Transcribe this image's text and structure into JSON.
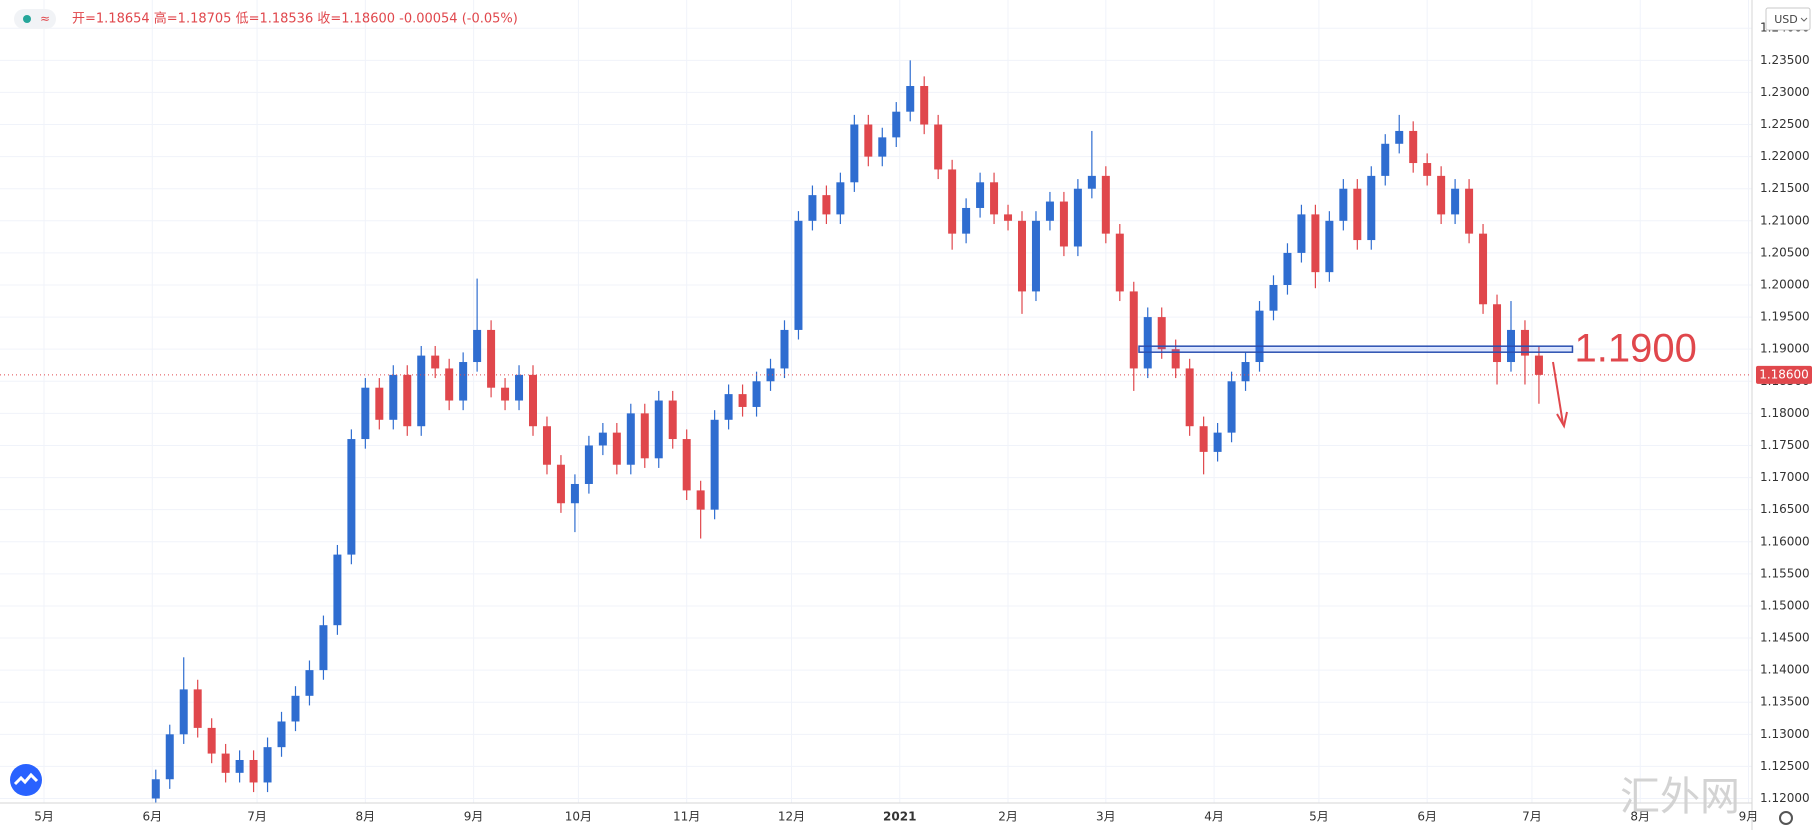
{
  "chart_data": {
    "type": "candlestick",
    "title": "开=1.18654 高=1.18705 低=1.18536 收=1.18600 -0.00054 (-0.05%)",
    "currency": "USD",
    "watermark": "汇外网",
    "up_color": "#2f6dd0",
    "down_color": "#e0474c",
    "xlim": [
      -12.6,
      489
    ],
    "xticks": [
      {
        "value": 0,
        "label": "5月"
      },
      {
        "value": 31,
        "label": "6月"
      },
      {
        "value": 61,
        "label": "7月"
      },
      {
        "value": 92,
        "label": "8月"
      },
      {
        "value": 123,
        "label": "9月"
      },
      {
        "value": 153,
        "label": "10月"
      },
      {
        "value": 184,
        "label": "11月"
      },
      {
        "value": 214,
        "label": "12月"
      },
      {
        "value": 245,
        "label": "2021"
      },
      {
        "value": 276,
        "label": "2月"
      },
      {
        "value": 304,
        "label": "3月"
      },
      {
        "value": 335,
        "label": "4月"
      },
      {
        "value": 365,
        "label": "5月"
      },
      {
        "value": 396,
        "label": "6月"
      },
      {
        "value": 426,
        "label": "7月"
      },
      {
        "value": 457,
        "label": "8月"
      },
      {
        "value": 488,
        "label": "9月"
      }
    ],
    "ylim": [
      1.1193,
      1.2444
    ],
    "yticks": [
      {
        "value": 1.12,
        "label": "1.12000"
      },
      {
        "value": 1.125,
        "label": "1.12500"
      },
      {
        "value": 1.13,
        "label": "1.13000"
      },
      {
        "value": 1.135,
        "label": "1.13500"
      },
      {
        "value": 1.14,
        "label": "1.14000"
      },
      {
        "value": 1.145,
        "label": "1.14500"
      },
      {
        "value": 1.15,
        "label": "1.15000"
      },
      {
        "value": 1.155,
        "label": "1.15500"
      },
      {
        "value": 1.16,
        "label": "1.16000"
      },
      {
        "value": 1.165,
        "label": "1.16500"
      },
      {
        "value": 1.17,
        "label": "1.17000"
      },
      {
        "value": 1.175,
        "label": "1.17500"
      },
      {
        "value": 1.18,
        "label": "1.18000"
      },
      {
        "value": 1.185,
        "label": "1.18500"
      },
      {
        "value": 1.19,
        "label": "1.19000"
      },
      {
        "value": 1.195,
        "label": "1.19500"
      },
      {
        "value": 1.2,
        "label": "1.20000"
      },
      {
        "value": 1.205,
        "label": "1.20500"
      },
      {
        "value": 1.21,
        "label": "1.21000"
      },
      {
        "value": 1.215,
        "label": "1.21500"
      },
      {
        "value": 1.22,
        "label": "1.22000"
      },
      {
        "value": 1.225,
        "label": "1.22500"
      },
      {
        "value": 1.23,
        "label": "1.23000"
      },
      {
        "value": 1.235,
        "label": "1.23500"
      },
      {
        "value": 1.24,
        "label": "1.24000"
      }
    ],
    "grid": true,
    "last_price": {
      "value": 1.186,
      "label": "1.18600"
    },
    "annotations": [
      {
        "text": "1.1900",
        "value": 1.19,
        "x": [
          313.5,
          437.6
        ]
      }
    ],
    "x": [
      32,
      36,
      40,
      44,
      48,
      52,
      56,
      60,
      64,
      68,
      72,
      76,
      80,
      84,
      88,
      92,
      96,
      100,
      104,
      108,
      112,
      116,
      120,
      124,
      128,
      132,
      136,
      140,
      144,
      148,
      152,
      156,
      160,
      164,
      168,
      172,
      176,
      180,
      184,
      188,
      192,
      196,
      200,
      204,
      208,
      212,
      216,
      220,
      224,
      228,
      232,
      236,
      240,
      244,
      248,
      252,
      256,
      260,
      264,
      268,
      272,
      276,
      280,
      284,
      288,
      292,
      296,
      300,
      304,
      308,
      312,
      316,
      320,
      324,
      328,
      332,
      336,
      340,
      344,
      348,
      352,
      356,
      360,
      364,
      368,
      372,
      376,
      380,
      384,
      388,
      392,
      396,
      400,
      404,
      408,
      412,
      416,
      420,
      424,
      428
    ],
    "open": [
      1.12,
      1.123,
      1.13,
      1.137,
      1.131,
      1.127,
      1.124,
      1.126,
      1.1225,
      1.128,
      1.132,
      1.136,
      1.14,
      1.147,
      1.158,
      1.176,
      1.184,
      1.179,
      1.186,
      1.178,
      1.189,
      1.187,
      1.182,
      1.188,
      1.193,
      1.184,
      1.182,
      1.186,
      1.178,
      1.172,
      1.166,
      1.169,
      1.175,
      1.177,
      1.172,
      1.18,
      1.173,
      1.182,
      1.176,
      1.168,
      1.165,
      1.179,
      1.183,
      1.181,
      1.185,
      1.187,
      1.193,
      1.21,
      1.214,
      1.211,
      1.216,
      1.225,
      1.22,
      1.223,
      1.227,
      1.231,
      1.225,
      1.218,
      1.208,
      1.212,
      1.216,
      1.211,
      1.21,
      1.199,
      1.21,
      1.213,
      1.206,
      1.215,
      1.217,
      1.208,
      1.199,
      1.187,
      1.195,
      1.19,
      1.187,
      1.178,
      1.174,
      1.177,
      1.185,
      1.188,
      1.196,
      1.2,
      1.205,
      1.211,
      1.202,
      1.21,
      1.215,
      1.207,
      1.217,
      1.222,
      1.224,
      1.219,
      1.217,
      1.211,
      1.215,
      1.208,
      1.197,
      1.188,
      1.193,
      1.189
    ],
    "high": [
      1.1245,
      1.1315,
      1.142,
      1.1385,
      1.1325,
      1.1285,
      1.1275,
      1.1275,
      1.1295,
      1.1335,
      1.1375,
      1.1415,
      1.1485,
      1.1595,
      1.1775,
      1.1855,
      1.1855,
      1.1875,
      1.1875,
      1.1905,
      1.1905,
      1.1885,
      1.1895,
      1.201,
      1.1945,
      1.1855,
      1.1875,
      1.1875,
      1.1795,
      1.1735,
      1.1705,
      1.1765,
      1.1785,
      1.1785,
      1.1815,
      1.1815,
      1.1835,
      1.1835,
      1.1775,
      1.1695,
      1.1805,
      1.1845,
      1.1845,
      1.1865,
      1.1885,
      1.1945,
      1.2115,
      1.2155,
      1.2155,
      1.2175,
      1.2265,
      1.2265,
      1.2245,
      1.2285,
      1.235,
      1.2325,
      1.2265,
      1.2195,
      1.2135,
      1.2175,
      1.2175,
      1.2125,
      1.2115,
      1.2115,
      1.2145,
      1.2145,
      1.2165,
      1.224,
      1.2185,
      1.2095,
      1.2005,
      1.1965,
      1.1965,
      1.1915,
      1.1885,
      1.1795,
      1.1785,
      1.1865,
      1.1895,
      1.1975,
      1.2015,
      1.2065,
      1.2125,
      1.2125,
      1.2115,
      1.2165,
      1.2165,
      1.2185,
      1.2235,
      1.2265,
      1.2255,
      1.2205,
      1.2185,
      1.2165,
      1.2165,
      1.2095,
      1.1985,
      1.1975,
      1.1945,
      1.1905
    ],
    "low": [
      1.1185,
      1.1215,
      1.1285,
      1.1295,
      1.1255,
      1.1225,
      1.1225,
      1.121,
      1.121,
      1.1265,
      1.1305,
      1.1345,
      1.1385,
      1.1455,
      1.1565,
      1.1745,
      1.1775,
      1.1775,
      1.1765,
      1.1765,
      1.1855,
      1.1805,
      1.1805,
      1.1865,
      1.1825,
      1.1805,
      1.1805,
      1.1765,
      1.1705,
      1.1645,
      1.1615,
      1.1675,
      1.1735,
      1.1705,
      1.1705,
      1.1715,
      1.1715,
      1.1745,
      1.1665,
      1.1605,
      1.1635,
      1.1775,
      1.1795,
      1.1795,
      1.1835,
      1.1855,
      1.1915,
      1.2085,
      1.2095,
      1.2095,
      1.2145,
      1.2185,
      1.2185,
      1.2215,
      1.2255,
      1.2235,
      1.2165,
      1.2055,
      1.2065,
      1.2105,
      1.2095,
      1.2085,
      1.1955,
      1.1975,
      1.2085,
      1.2045,
      1.2045,
      1.2135,
      1.2065,
      1.1975,
      1.1835,
      1.1855,
      1.1885,
      1.1855,
      1.1765,
      1.1705,
      1.1725,
      1.1755,
      1.1835,
      1.1865,
      1.1945,
      1.1985,
      1.2035,
      1.1995,
      1.2005,
      1.2085,
      1.2055,
      1.2055,
      1.2155,
      1.2205,
      1.2175,
      1.2155,
      1.2095,
      1.2095,
      1.2065,
      1.1955,
      1.1845,
      1.1865,
      1.1845,
      1.1815
    ],
    "close": [
      1.123,
      1.13,
      1.137,
      1.131,
      1.127,
      1.124,
      1.126,
      1.1225,
      1.128,
      1.132,
      1.136,
      1.14,
      1.147,
      1.158,
      1.176,
      1.184,
      1.179,
      1.186,
      1.178,
      1.189,
      1.187,
      1.182,
      1.188,
      1.193,
      1.184,
      1.182,
      1.186,
      1.178,
      1.172,
      1.166,
      1.169,
      1.175,
      1.177,
      1.172,
      1.18,
      1.173,
      1.182,
      1.176,
      1.168,
      1.165,
      1.179,
      1.183,
      1.181,
      1.185,
      1.187,
      1.193,
      1.21,
      1.214,
      1.211,
      1.216,
      1.225,
      1.22,
      1.223,
      1.227,
      1.231,
      1.225,
      1.218,
      1.208,
      1.212,
      1.216,
      1.211,
      1.21,
      1.199,
      1.21,
      1.213,
      1.206,
      1.215,
      1.217,
      1.208,
      1.199,
      1.187,
      1.195,
      1.19,
      1.187,
      1.178,
      1.174,
      1.177,
      1.185,
      1.188,
      1.196,
      1.2,
      1.205,
      1.211,
      1.202,
      1.21,
      1.215,
      1.207,
      1.217,
      1.222,
      1.224,
      1.219,
      1.217,
      1.211,
      1.215,
      1.208,
      1.197,
      1.188,
      1.193,
      1.189,
      1.186
    ]
  }
}
